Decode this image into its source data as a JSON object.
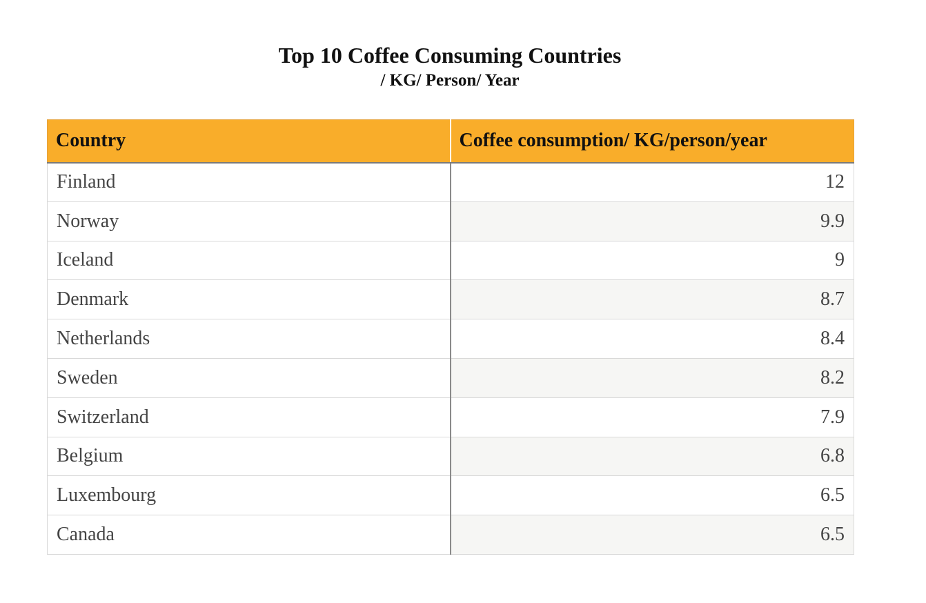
{
  "chart_data": {
    "type": "table",
    "title": "Top 10 Coffee Consuming Countries",
    "subtitle": "/ KG/ Person/ Year",
    "columns": [
      "Country",
      "Coffee consumption/ KG/person/year"
    ],
    "rows": [
      {
        "country": "Finland",
        "value": "12"
      },
      {
        "country": "Norway",
        "value": "9.9"
      },
      {
        "country": "Iceland",
        "value": "9"
      },
      {
        "country": "Denmark",
        "value": "8.7"
      },
      {
        "country": "Netherlands",
        "value": "8.4"
      },
      {
        "country": "Sweden",
        "value": "8.2"
      },
      {
        "country": "Switzerland",
        "value": "7.9"
      },
      {
        "country": "Belgium",
        "value": "6.8"
      },
      {
        "country": "Luxembourg",
        "value": "6.5"
      },
      {
        "country": "Canada",
        "value": "6.5"
      }
    ],
    "header_color": "#f9ad2a",
    "stripe_color": "#f6f6f4"
  }
}
